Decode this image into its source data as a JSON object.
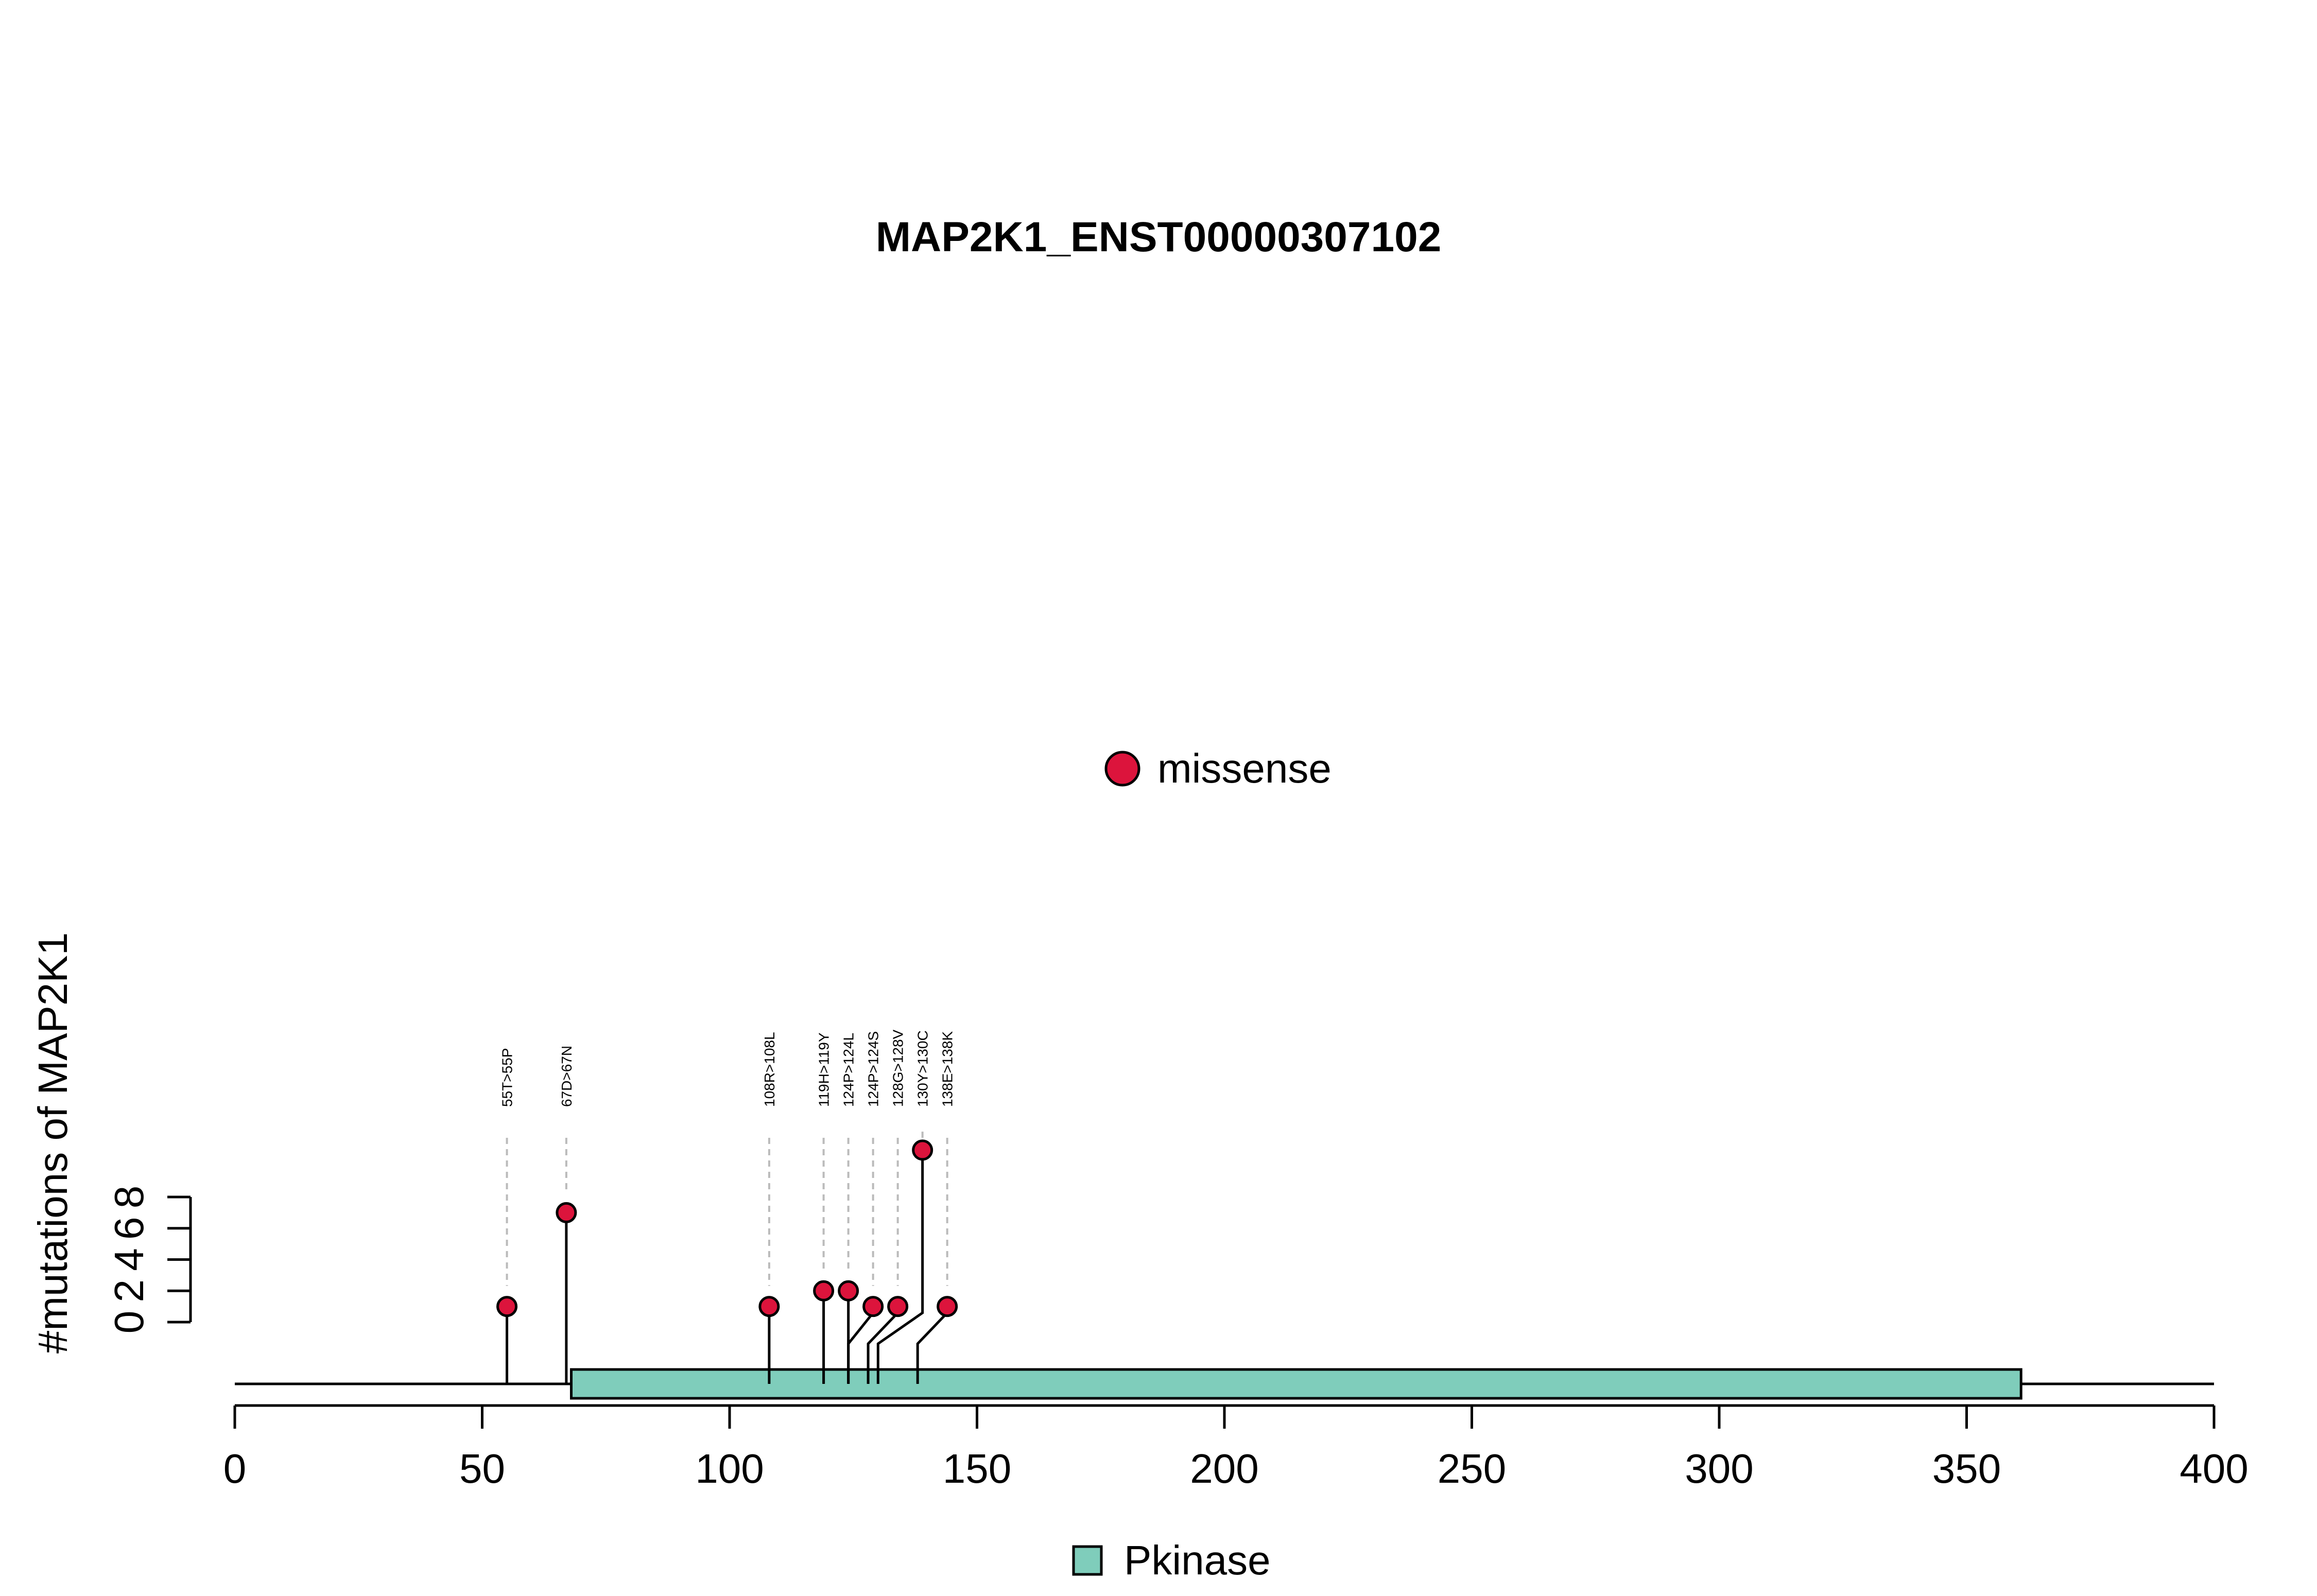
{
  "chart_data": {
    "type": "lollipop",
    "title": "MAP2K1_ENST00000307102",
    "ylabel": "#mutations of MAP2K1",
    "xlim": [
      0,
      400
    ],
    "x_ticks": [
      0,
      50,
      100,
      150,
      200,
      250,
      300,
      350,
      400
    ],
    "ylim": [
      0,
      8
    ],
    "y_ticks": [
      0,
      2,
      4,
      6,
      8
    ],
    "protein_length": 400,
    "legend": {
      "mutation_types": [
        {
          "name": "missense",
          "color": "#DC143C"
        }
      ],
      "domains": [
        {
          "name": "Pkinase",
          "color": "#7FCDBB"
        }
      ]
    },
    "domains": [
      {
        "name": "Pkinase",
        "start": 68,
        "end": 361,
        "color": "#7FCDBB"
      }
    ],
    "mutations": [
      {
        "label": "55T>55P",
        "position": 55,
        "count": 1,
        "type": "missense"
      },
      {
        "label": "67D>67N",
        "position": 67,
        "count": 7,
        "type": "missense"
      },
      {
        "label": "108R>108L",
        "position": 108,
        "count": 1,
        "type": "missense"
      },
      {
        "label": "119H>119Y",
        "position": 119,
        "count": 2,
        "type": "missense"
      },
      {
        "label": "124P>124L",
        "position": 124,
        "count": 2,
        "type": "missense"
      },
      {
        "label": "124P>124S",
        "position": 124,
        "count": 1,
        "type": "missense"
      },
      {
        "label": "128G>128V",
        "position": 128,
        "count": 1,
        "type": "missense"
      },
      {
        "label": "130Y>130C",
        "position": 130,
        "count": 11,
        "type": "missense"
      },
      {
        "label": "138E>138K",
        "position": 138,
        "count": 1,
        "type": "missense"
      }
    ]
  }
}
